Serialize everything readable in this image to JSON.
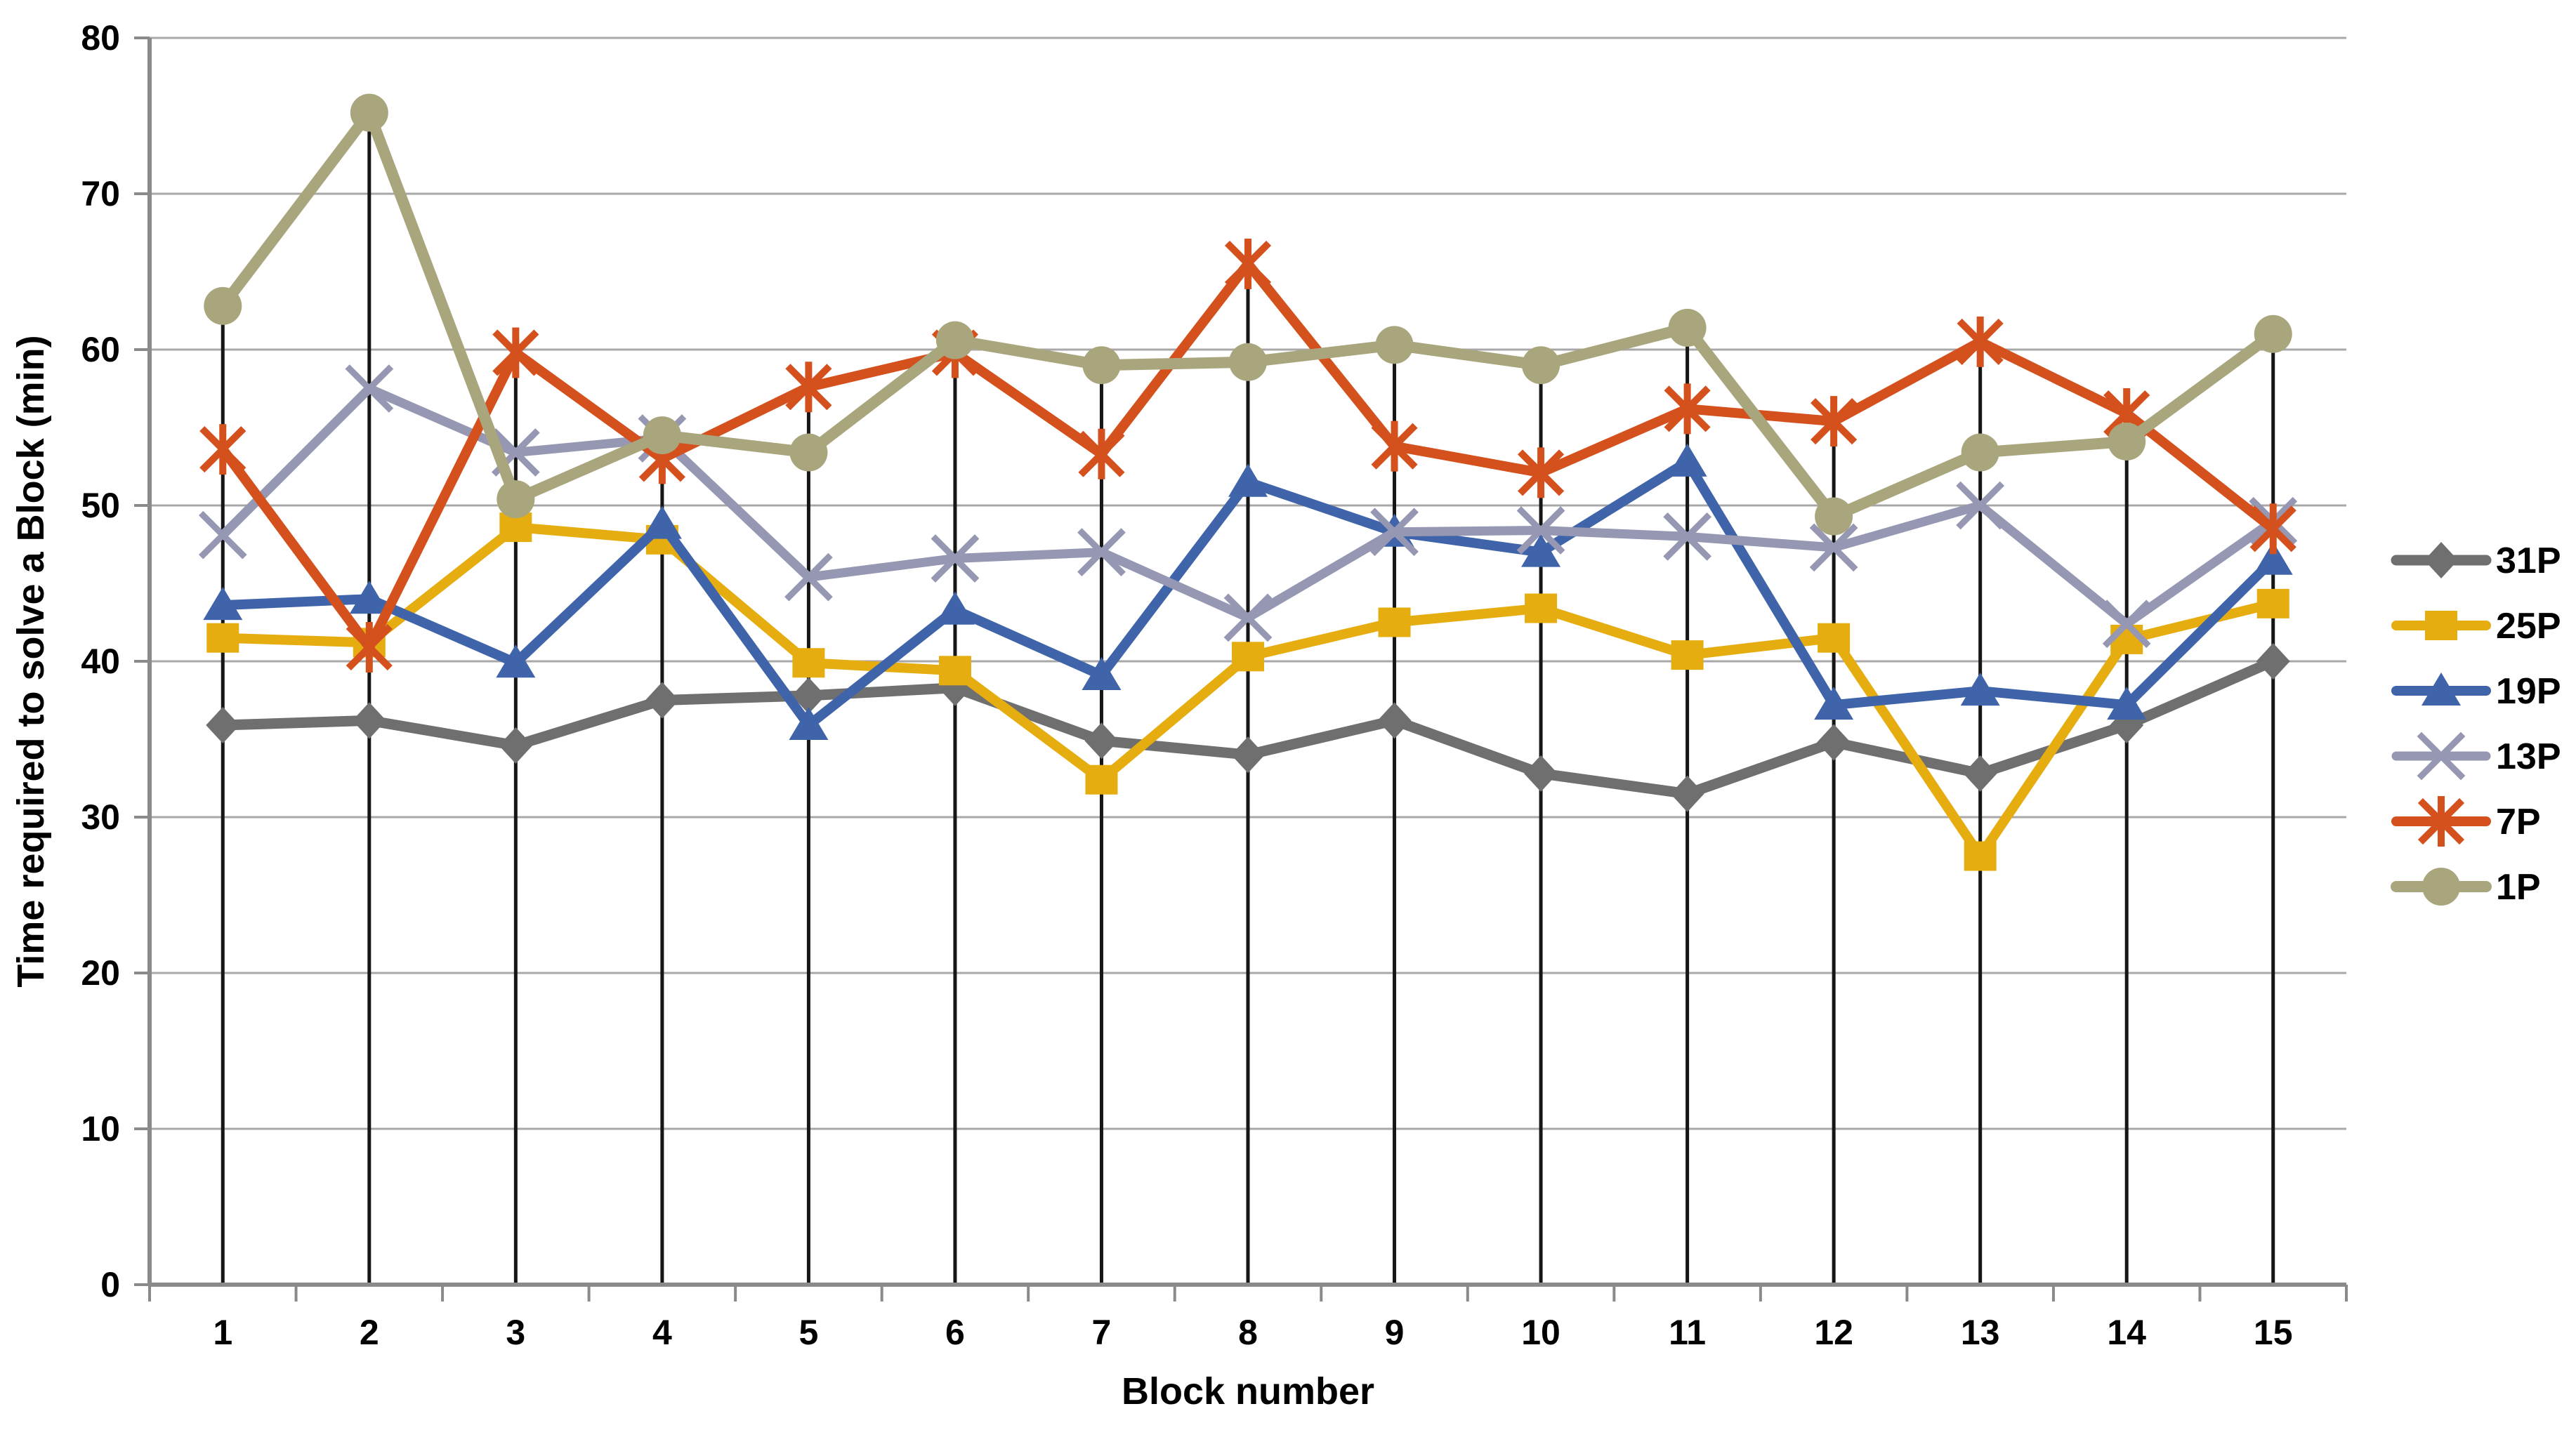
{
  "chart_data": {
    "type": "line",
    "title": "",
    "xlabel": "Block number",
    "ylabel": "Time required to solve a Block (min)",
    "x_tick_labels": [
      "1",
      "2",
      "3",
      "4",
      "5",
      "6",
      "7",
      "8",
      "9",
      "10",
      "11",
      "12",
      "13",
      "14",
      "15"
    ],
    "y_tick_labels": [
      "0",
      "10",
      "20",
      "30",
      "40",
      "50",
      "60",
      "70",
      "80"
    ],
    "y_ticks": [
      0,
      10,
      20,
      30,
      40,
      50,
      60,
      70,
      80
    ],
    "ylim": [
      0,
      80
    ],
    "grid": "horizontal",
    "legend_position": "right",
    "drop_lines": true,
    "categories": [
      1,
      2,
      3,
      4,
      5,
      6,
      7,
      8,
      9,
      10,
      11,
      12,
      13,
      14,
      15
    ],
    "series": [
      {
        "name": "31P",
        "marker": "diamond",
        "color": "#6f6f6f",
        "line_width": 15,
        "values": [
          35.9,
          36.2,
          34.6,
          37.5,
          37.8,
          38.3,
          34.9,
          34.0,
          36.2,
          32.8,
          31.5,
          34.8,
          32.8,
          35.9,
          40.0
        ]
      },
      {
        "name": "25P",
        "marker": "square",
        "color": "#e5ad10",
        "line_width": 14,
        "values": [
          41.5,
          41.2,
          48.6,
          47.8,
          39.9,
          39.4,
          32.4,
          40.3,
          42.5,
          43.4,
          40.4,
          41.5,
          27.5,
          41.4,
          43.7
        ]
      },
      {
        "name": "19P",
        "marker": "triangle",
        "color": "#3f64a9",
        "line_width": 14,
        "values": [
          43.6,
          44.0,
          39.9,
          48.8,
          35.9,
          43.3,
          39.1,
          51.5,
          48.3,
          47.0,
          52.8,
          37.2,
          38.1,
          37.2,
          46.5
        ]
      },
      {
        "name": "13P",
        "marker": "x",
        "color": "#9597b3",
        "line_width": 13,
        "values": [
          48.1,
          57.5,
          53.4,
          54.3,
          45.4,
          46.6,
          47.0,
          42.8,
          48.3,
          48.4,
          48.0,
          47.3,
          50.0,
          42.4,
          49.0
        ]
      },
      {
        "name": "7P",
        "marker": "asterisk",
        "color": "#d4501d",
        "line_width": 14,
        "values": [
          53.6,
          40.9,
          59.8,
          53.0,
          57.6,
          59.8,
          53.3,
          65.5,
          53.8,
          52.1,
          56.2,
          55.4,
          60.5,
          55.9,
          48.5
        ]
      },
      {
        "name": "1P",
        "marker": "circle",
        "color": "#a9a67d",
        "line_width": 16,
        "values": [
          62.8,
          75.2,
          50.4,
          54.5,
          53.4,
          60.6,
          59.0,
          59.2,
          60.3,
          59.0,
          61.4,
          49.3,
          53.4,
          54.1,
          61.0
        ]
      }
    ]
  },
  "styles": {
    "background": "#ffffff",
    "grid_color": "#a8a8a8",
    "axis_color": "#8a8a8a",
    "drop_line_color": "#161616",
    "text_color": "#000000"
  }
}
